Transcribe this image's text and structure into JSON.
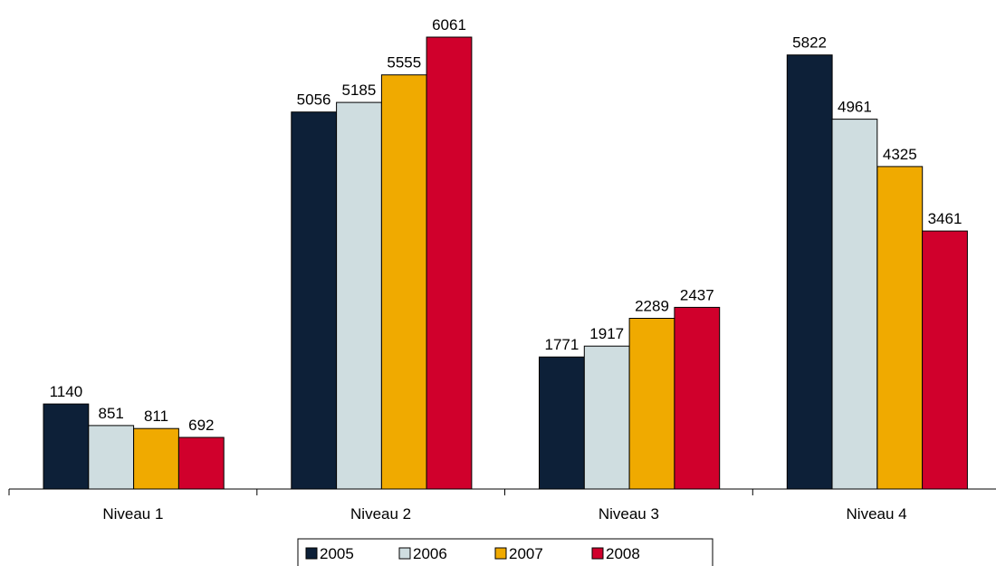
{
  "chart_data": {
    "type": "bar",
    "title": "",
    "xlabel": "",
    "ylabel": "",
    "categories": [
      "Niveau 1",
      "Niveau 2",
      "Niveau 3",
      "Niveau 4"
    ],
    "series": [
      {
        "name": "2005",
        "color": "#0d2038",
        "values": [
          1140,
          5056,
          1771,
          5822
        ]
      },
      {
        "name": "2006",
        "color": "#cfdde0",
        "values": [
          851,
          5185,
          1917,
          4961
        ]
      },
      {
        "name": "2007",
        "color": "#f0aa00",
        "values": [
          811,
          5555,
          2289,
          4325
        ]
      },
      {
        "name": "2008",
        "color": "#d0002c",
        "values": [
          692,
          6061,
          2437,
          3461
        ]
      }
    ],
    "ylim": [
      0,
      6061
    ],
    "grid": false,
    "legend_position": "bottom"
  }
}
